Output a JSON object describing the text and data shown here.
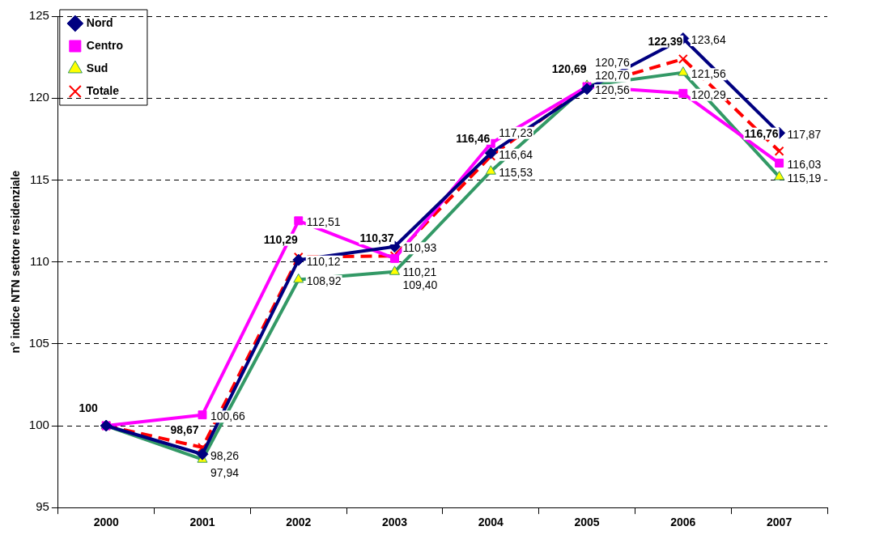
{
  "chart_data": {
    "type": "line",
    "ylabel": "n° indice NTN settore residenziale",
    "categories": [
      "2000",
      "2001",
      "2002",
      "2003",
      "2004",
      "2005",
      "2006",
      "2007"
    ],
    "ylim": [
      95,
      125
    ],
    "yticks": [
      95,
      100,
      105,
      110,
      115,
      120,
      125
    ],
    "grid": "y",
    "legend": "top left",
    "series": [
      {
        "name": "Nord",
        "color": "#000080",
        "marker": "diamond",
        "line_style": "solid",
        "values": [
          100,
          98.26,
          110.12,
          110.93,
          116.64,
          120.56,
          123.64,
          117.87
        ],
        "value_labels": [
          null,
          "98,26",
          "110,12",
          "110,93",
          "116,64",
          "120,56",
          "123,64",
          "117,87"
        ]
      },
      {
        "name": "Centro",
        "color": "#ff00ff",
        "marker": "square",
        "line_style": "solid",
        "values": [
          100,
          100.66,
          112.51,
          110.21,
          117.23,
          120.7,
          120.29,
          116.03
        ],
        "value_labels": [
          null,
          "100,66",
          "112,51",
          "110,21",
          "117,23",
          "120,70",
          "120,29",
          "116,03"
        ]
      },
      {
        "name": "Sud",
        "color": "#339966",
        "marker": "triangle",
        "line_style": "solid",
        "values": [
          100,
          97.94,
          108.92,
          109.4,
          115.53,
          120.76,
          121.56,
          115.19
        ],
        "value_labels": [
          null,
          "97,94",
          "108,92",
          "109,40",
          "115,53",
          "120,76",
          "121,56",
          "115,19"
        ]
      },
      {
        "name": "Totale",
        "color": "#ff0000",
        "marker": "cross",
        "line_style": "dashed",
        "values": [
          100,
          98.67,
          110.29,
          110.37,
          116.46,
          120.69,
          122.39,
          116.76
        ],
        "value_labels": [
          "100",
          "98,67",
          "110,29",
          "110,37",
          "116,46",
          "120,69",
          "122,39",
          "116,76"
        ]
      }
    ]
  }
}
